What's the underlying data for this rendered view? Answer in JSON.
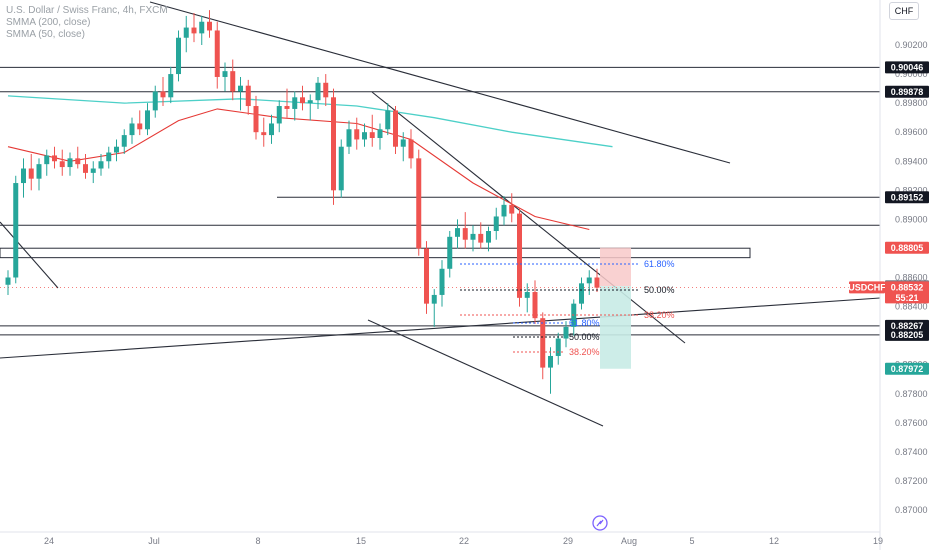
{
  "legend": {
    "title": "U.S. Dollar / Swiss Franc, 4h, FXCM",
    "sma200": "SMMA (200, close)",
    "sma50": "SMMA (50, close)"
  },
  "currency_button": "CHF",
  "colors": {
    "up": "#26a69a",
    "down": "#ef5350",
    "sma200": "#4dd0c8",
    "sma50": "#e53935",
    "trend": "#2a2e39",
    "fib_black": "#131722",
    "fib_red": "#ef5350",
    "fib_blue": "#2962ff",
    "loss_zone": "#f8c9c9",
    "profit_zone": "#c8ebe5"
  },
  "chart_data": {
    "type": "candlestick",
    "symbol": "USDCHF",
    "timeframe": "4h",
    "x_ticks": [
      "24",
      "Jul",
      "8",
      "15",
      "22",
      "29",
      "Aug",
      "5",
      "12",
      "19"
    ],
    "ylim": [
      0.869,
      0.904
    ],
    "y_ticks": [
      "0.90200",
      "0.90000",
      "0.89800",
      "0.89600",
      "0.89400",
      "0.89200",
      "0.89000",
      "0.88600",
      "0.88400",
      "0.88000",
      "0.87800",
      "0.87600",
      "0.87400",
      "0.87200",
      "0.87000"
    ],
    "price_tags": [
      {
        "label": "0.90046",
        "style": "black"
      },
      {
        "label": "0.89878",
        "style": "black"
      },
      {
        "label": "0.89152",
        "style": "black"
      },
      {
        "label": "0.88805",
        "style": "red"
      },
      {
        "label": "0.88540",
        "style": "gray"
      },
      {
        "label": "0.88267",
        "style": "black"
      },
      {
        "label": "0.88205",
        "style": "black"
      },
      {
        "label": "0.87972",
        "style": "green"
      }
    ],
    "current_price": {
      "symbol": "USDCHF",
      "price": "0.88532",
      "countdown": "55:21"
    },
    "fib_labels": [
      {
        "label": "61.80%",
        "color": "blue"
      },
      {
        "label": "50.00%",
        "color": "black"
      },
      {
        "label": "38.20%",
        "color": "red"
      },
      {
        "label": "61.80%",
        "color": "blue"
      },
      {
        "label": "50.00%",
        "color": "black"
      },
      {
        "label": "38.20%",
        "color": "red"
      }
    ],
    "candles": [
      [
        0,
        0.8855,
        0.8865,
        0.8848,
        0.886
      ],
      [
        1,
        0.886,
        0.893,
        0.8856,
        0.8925
      ],
      [
        2,
        0.8925,
        0.8942,
        0.8915,
        0.8935
      ],
      [
        3,
        0.8935,
        0.8945,
        0.892,
        0.8928
      ],
      [
        4,
        0.8928,
        0.8942,
        0.892,
        0.8938
      ],
      [
        5,
        0.8938,
        0.8948,
        0.893,
        0.8944
      ],
      [
        6,
        0.8944,
        0.895,
        0.8935,
        0.894
      ],
      [
        7,
        0.894,
        0.8948,
        0.893,
        0.8936
      ],
      [
        8,
        0.8936,
        0.8946,
        0.893,
        0.8942
      ],
      [
        9,
        0.8942,
        0.895,
        0.8935,
        0.8938
      ],
      [
        10,
        0.8938,
        0.8945,
        0.8928,
        0.8932
      ],
      [
        11,
        0.8932,
        0.894,
        0.8925,
        0.8935
      ],
      [
        12,
        0.8935,
        0.8945,
        0.893,
        0.894
      ],
      [
        13,
        0.894,
        0.895,
        0.8935,
        0.8946
      ],
      [
        14,
        0.8946,
        0.8955,
        0.894,
        0.895
      ],
      [
        15,
        0.895,
        0.8962,
        0.8945,
        0.8958
      ],
      [
        16,
        0.8958,
        0.897,
        0.8952,
        0.8966
      ],
      [
        17,
        0.8966,
        0.8975,
        0.8958,
        0.8962
      ],
      [
        18,
        0.8962,
        0.898,
        0.8958,
        0.8975
      ],
      [
        19,
        0.8975,
        0.8992,
        0.897,
        0.8988
      ],
      [
        20,
        0.8988,
        0.8998,
        0.8978,
        0.8984
      ],
      [
        21,
        0.8984,
        0.9005,
        0.898,
        0.9
      ],
      [
        22,
        0.9,
        0.903,
        0.8995,
        0.9025
      ],
      [
        23,
        0.9025,
        0.904,
        0.9015,
        0.9032
      ],
      [
        24,
        0.9032,
        0.9042,
        0.9022,
        0.9028
      ],
      [
        25,
        0.9028,
        0.904,
        0.902,
        0.9036
      ],
      [
        26,
        0.9036,
        0.9044,
        0.9025,
        0.903
      ],
      [
        27,
        0.903,
        0.9036,
        0.899,
        0.8998
      ],
      [
        28,
        0.8998,
        0.9008,
        0.8988,
        0.9002
      ],
      [
        29,
        0.9002,
        0.901,
        0.8982,
        0.8988
      ],
      [
        30,
        0.8988,
        0.8998,
        0.8975,
        0.8992
      ],
      [
        31,
        0.8992,
        0.8996,
        0.8972,
        0.8978
      ],
      [
        32,
        0.8978,
        0.8985,
        0.8955,
        0.896
      ],
      [
        33,
        0.896,
        0.897,
        0.895,
        0.8958
      ],
      [
        34,
        0.8958,
        0.8972,
        0.8952,
        0.8966
      ],
      [
        35,
        0.8966,
        0.8982,
        0.896,
        0.8978
      ],
      [
        36,
        0.8978,
        0.899,
        0.897,
        0.8976
      ],
      [
        37,
        0.8976,
        0.8988,
        0.8968,
        0.8984
      ],
      [
        38,
        0.8984,
        0.8992,
        0.8975,
        0.898
      ],
      [
        39,
        0.898,
        0.8986,
        0.8968,
        0.8982
      ],
      [
        40,
        0.8982,
        0.8998,
        0.8976,
        0.8994
      ],
      [
        41,
        0.8994,
        0.9,
        0.8978,
        0.8984
      ],
      [
        42,
        0.8984,
        0.899,
        0.891,
        0.892
      ],
      [
        43,
        0.892,
        0.8955,
        0.8915,
        0.895
      ],
      [
        44,
        0.895,
        0.8968,
        0.8945,
        0.8962
      ],
      [
        45,
        0.8962,
        0.897,
        0.8948,
        0.8955
      ],
      [
        46,
        0.8955,
        0.8966,
        0.895,
        0.896
      ],
      [
        47,
        0.896,
        0.8972,
        0.895,
        0.8956
      ],
      [
        48,
        0.8956,
        0.8966,
        0.8948,
        0.8962
      ],
      [
        49,
        0.8962,
        0.898,
        0.8958,
        0.8975
      ],
      [
        50,
        0.8975,
        0.8978,
        0.8945,
        0.895
      ],
      [
        51,
        0.895,
        0.896,
        0.894,
        0.8955
      ],
      [
        52,
        0.8955,
        0.8962,
        0.8935,
        0.8942
      ],
      [
        53,
        0.8942,
        0.8948,
        0.8875,
        0.888
      ],
      [
        54,
        0.888,
        0.8885,
        0.8835,
        0.8842
      ],
      [
        55,
        0.8842,
        0.8852,
        0.8826,
        0.8848
      ],
      [
        56,
        0.8848,
        0.8872,
        0.884,
        0.8866
      ],
      [
        57,
        0.8866,
        0.8892,
        0.886,
        0.8888
      ],
      [
        58,
        0.8888,
        0.89,
        0.888,
        0.8894
      ],
      [
        59,
        0.8894,
        0.8905,
        0.888,
        0.8886
      ],
      [
        60,
        0.8886,
        0.8896,
        0.8878,
        0.889
      ],
      [
        61,
        0.889,
        0.8898,
        0.888,
        0.8884
      ],
      [
        62,
        0.8884,
        0.8895,
        0.8878,
        0.8892
      ],
      [
        63,
        0.8892,
        0.8908,
        0.8886,
        0.8902
      ],
      [
        64,
        0.8902,
        0.8916,
        0.8896,
        0.891
      ],
      [
        65,
        0.891,
        0.8918,
        0.8898,
        0.8904
      ],
      [
        66,
        0.8904,
        0.8908,
        0.884,
        0.8846
      ],
      [
        67,
        0.8846,
        0.8856,
        0.8836,
        0.885
      ],
      [
        68,
        0.885,
        0.8858,
        0.8828,
        0.8832
      ],
      [
        69,
        0.8832,
        0.8836,
        0.879,
        0.8798
      ],
      [
        70,
        0.8798,
        0.8812,
        0.878,
        0.8806
      ],
      [
        71,
        0.8806,
        0.8822,
        0.88,
        0.8818
      ],
      [
        72,
        0.8818,
        0.883,
        0.8812,
        0.8826
      ],
      [
        73,
        0.8826,
        0.8845,
        0.882,
        0.8842
      ],
      [
        74,
        0.8842,
        0.886,
        0.8838,
        0.8856
      ],
      [
        75,
        0.8856,
        0.8865,
        0.8848,
        0.886
      ],
      [
        76,
        0.886,
        0.8866,
        0.885,
        0.8853
      ]
    ],
    "sma200": [
      [
        0,
        0.8985
      ],
      [
        15,
        0.898
      ],
      [
        30,
        0.8983
      ],
      [
        45,
        0.8978
      ],
      [
        55,
        0.897
      ],
      [
        65,
        0.896
      ],
      [
        78,
        0.895
      ]
    ],
    "sma50": [
      [
        0,
        0.895
      ],
      [
        8,
        0.894
      ],
      [
        15,
        0.8946
      ],
      [
        22,
        0.8968
      ],
      [
        27,
        0.8976
      ],
      [
        35,
        0.897
      ],
      [
        45,
        0.8966
      ],
      [
        52,
        0.8955
      ],
      [
        60,
        0.8925
      ],
      [
        68,
        0.8902
      ],
      [
        75,
        0.8893
      ]
    ],
    "horizontal_levels": [
      0.90046,
      0.89878,
      0.89152,
      0.8896,
      0.88267,
      0.88205
    ],
    "zone_box": [
      0.88805,
      0.8874
    ]
  }
}
